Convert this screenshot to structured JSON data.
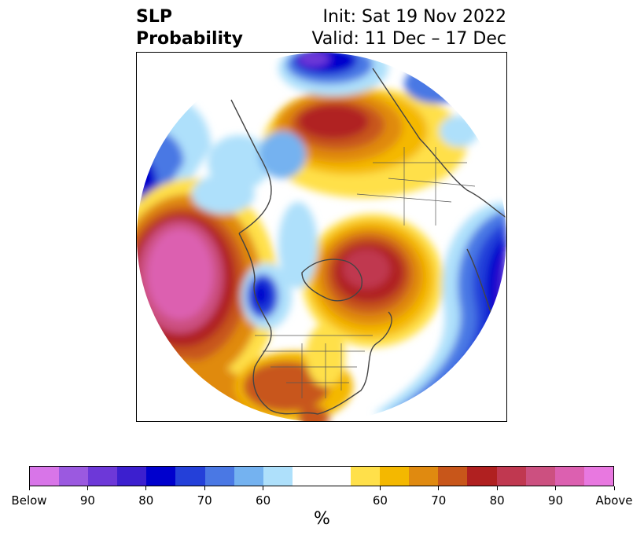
{
  "header": {
    "title_line1": "SLP",
    "title_line2": "Probability",
    "init": "Init: Sat 19 Nov 2022",
    "valid": "Valid: 11 Dec – 17 Dec"
  },
  "colorbar": {
    "colors": [
      "#d875e8",
      "#9b59e0",
      "#6d38d8",
      "#3c1fcf",
      "#0000cd",
      "#2440d9",
      "#4a78e4",
      "#74b2f0",
      "#aee0fb",
      "#ffffff",
      "#ffffff",
      "#ffe04a",
      "#f4b800",
      "#e08a10",
      "#c8561a",
      "#b02020",
      "#c03850",
      "#cc5080",
      "#dc60b0",
      "#e878e0"
    ],
    "tick_labels": [
      "Below",
      "90",
      "80",
      "70",
      "60",
      "60",
      "70",
      "80",
      "90",
      "Above"
    ],
    "unit": "%"
  },
  "map": {
    "projection": "north-polar-stereographic",
    "variable": "sea-level-pressure-probability"
  }
}
